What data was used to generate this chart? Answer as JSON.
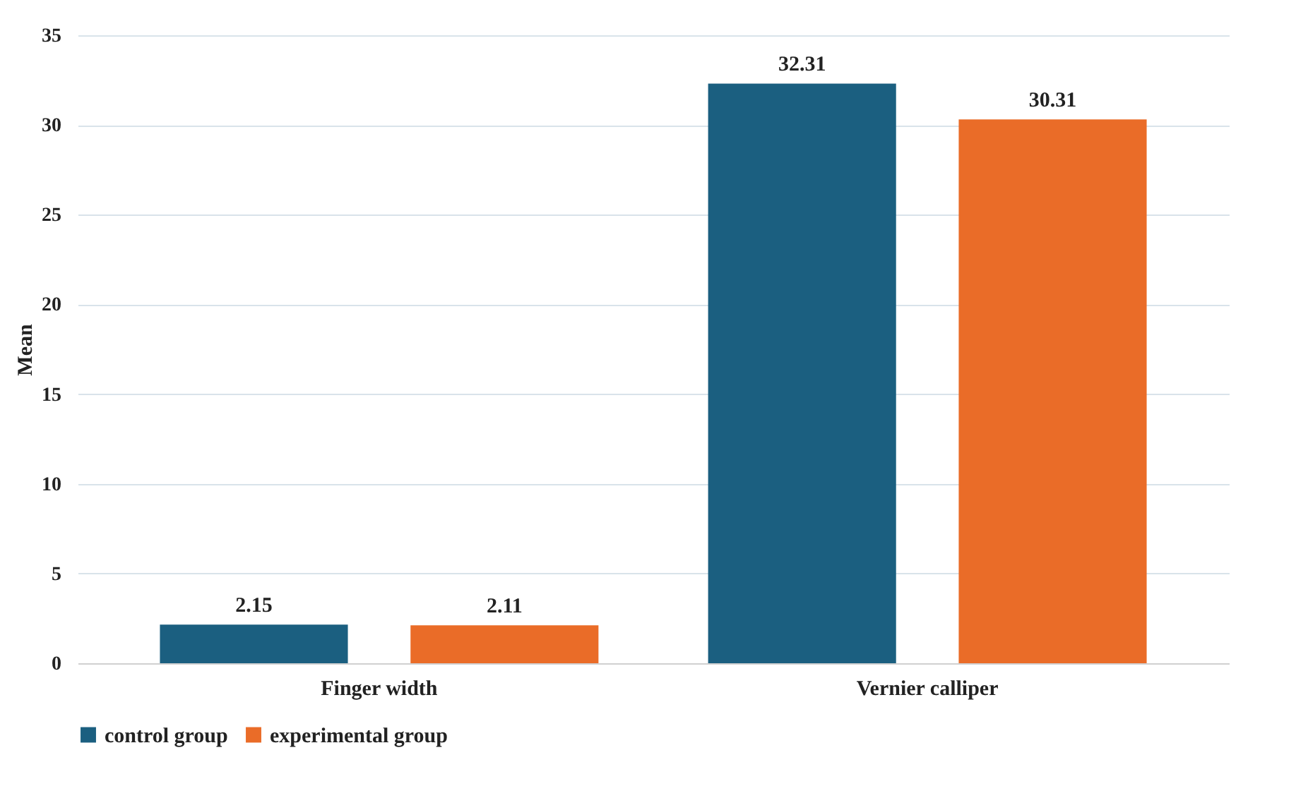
{
  "chart_data": {
    "type": "bar",
    "ylabel": "Mean",
    "categories": [
      "Finger width",
      "Vernier calliper"
    ],
    "series": [
      {
        "name": "control group",
        "color": "#1b5f80",
        "values": [
          2.15,
          32.31
        ]
      },
      {
        "name": "experimental group",
        "color": "#ea6c28",
        "values": [
          2.11,
          30.31
        ]
      }
    ],
    "ylim": [
      0,
      35
    ],
    "yticks": [
      0,
      5,
      10,
      15,
      20,
      25,
      30,
      35
    ],
    "grid": "y",
    "legend": "bottom",
    "data_labels": true
  }
}
